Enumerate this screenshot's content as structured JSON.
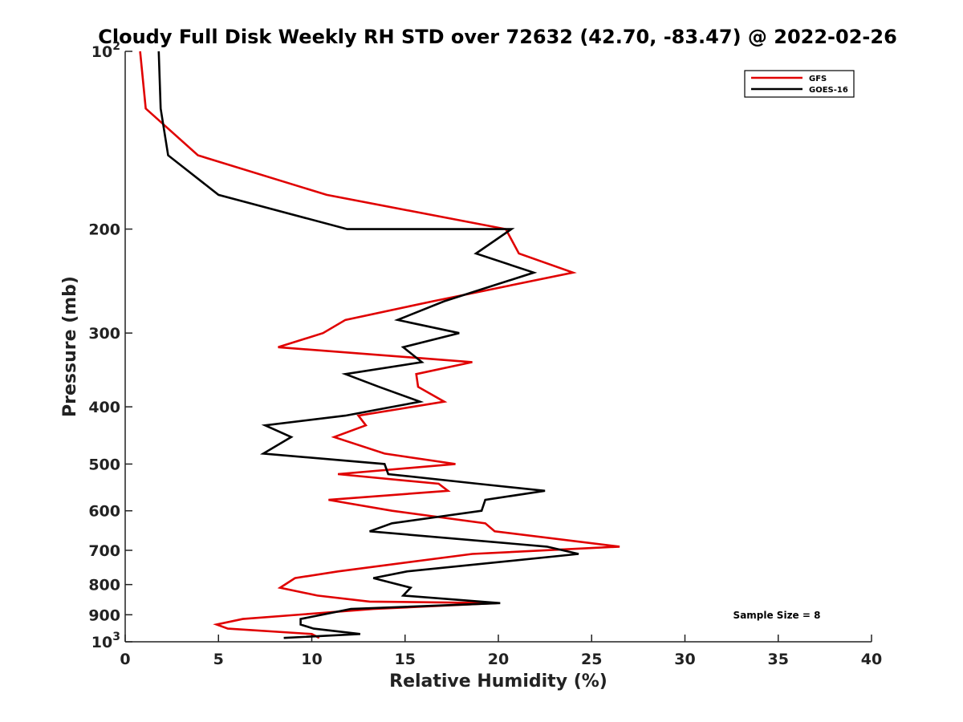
{
  "chart_data": {
    "type": "line",
    "title": "Cloudy Full Disk Weekly RH STD over 72632 (42.70, -83.47) @ 2022-02-26",
    "xlabel": "Relative Humidity (%)",
    "ylabel": "Pressure (mb)",
    "xlim": [
      0,
      40
    ],
    "ylim": [
      100,
      1000
    ],
    "yscale": "log",
    "y_inverted": true,
    "grid": false,
    "legend_position": "top-right",
    "x_ticks": [
      0,
      5,
      10,
      15,
      20,
      25,
      30,
      35,
      40
    ],
    "x_tick_labels": [
      "0",
      "5",
      "10",
      "15",
      "20",
      "25",
      "30",
      "35",
      "40"
    ],
    "y_ticks": [
      100,
      200,
      300,
      400,
      500,
      600,
      700,
      800,
      900,
      1000
    ],
    "y_tick_labels": [
      {
        "base": "10",
        "sup": "2"
      },
      {
        "base": "200",
        "sup": ""
      },
      {
        "base": "300",
        "sup": ""
      },
      {
        "base": "400",
        "sup": ""
      },
      {
        "base": "500",
        "sup": ""
      },
      {
        "base": "600",
        "sup": ""
      },
      {
        "base": "700",
        "sup": ""
      },
      {
        "base": "800",
        "sup": ""
      },
      {
        "base": "900",
        "sup": ""
      },
      {
        "base": "10",
        "sup": "3"
      }
    ],
    "annotation": "Sample Size = 8",
    "series": [
      {
        "name": "GFS",
        "color": "#e00000",
        "points": [
          [
            0.8,
            100
          ],
          [
            1.1,
            125
          ],
          [
            3.9,
            150
          ],
          [
            10.8,
            175
          ],
          [
            20.4,
            200
          ],
          [
            21.1,
            220
          ],
          [
            24.0,
            237
          ],
          [
            16.5,
            265
          ],
          [
            11.8,
            285
          ],
          [
            10.6,
            300
          ],
          [
            8.2,
            317
          ],
          [
            18.6,
            336
          ],
          [
            15.6,
            352
          ],
          [
            15.7,
            370
          ],
          [
            17.1,
            392
          ],
          [
            12.5,
            414
          ],
          [
            12.9,
            430
          ],
          [
            11.2,
            450
          ],
          [
            13.9,
            480
          ],
          [
            17.7,
            500
          ],
          [
            11.4,
            520
          ],
          [
            16.8,
            540
          ],
          [
            17.3,
            555
          ],
          [
            10.9,
            575
          ],
          [
            14.3,
            600
          ],
          [
            19.3,
            630
          ],
          [
            19.8,
            650
          ],
          [
            26.5,
            690
          ],
          [
            18.6,
            710
          ],
          [
            11.4,
            760
          ],
          [
            9.1,
            780
          ],
          [
            8.3,
            810
          ],
          [
            10.3,
            835
          ],
          [
            13.1,
            855
          ],
          [
            19.9,
            860
          ],
          [
            13.3,
            880
          ],
          [
            6.3,
            915
          ],
          [
            4.9,
            935
          ],
          [
            5.5,
            950
          ],
          [
            10.0,
            970
          ],
          [
            10.4,
            985
          ]
        ]
      },
      {
        "name": "GOES-16",
        "color": "#000000",
        "points": [
          [
            1.8,
            100
          ],
          [
            1.9,
            125
          ],
          [
            2.3,
            150
          ],
          [
            5.0,
            175
          ],
          [
            11.9,
            200
          ],
          [
            20.7,
            200
          ],
          [
            18.8,
            220
          ],
          [
            21.9,
            237
          ],
          [
            17.1,
            265
          ],
          [
            14.6,
            285
          ],
          [
            17.9,
            300
          ],
          [
            14.9,
            317
          ],
          [
            15.9,
            336
          ],
          [
            11.8,
            352
          ],
          [
            13.6,
            370
          ],
          [
            15.8,
            392
          ],
          [
            11.8,
            414
          ],
          [
            7.5,
            430
          ],
          [
            8.9,
            450
          ],
          [
            7.4,
            480
          ],
          [
            13.9,
            500
          ],
          [
            14.1,
            520
          ],
          [
            18.9,
            540
          ],
          [
            22.5,
            555
          ],
          [
            19.3,
            575
          ],
          [
            19.1,
            600
          ],
          [
            14.3,
            630
          ],
          [
            13.1,
            650
          ],
          [
            22.6,
            690
          ],
          [
            24.3,
            710
          ],
          [
            15.1,
            760
          ],
          [
            13.3,
            780
          ],
          [
            15.3,
            810
          ],
          [
            14.9,
            835
          ],
          [
            20.1,
            860
          ],
          [
            12.1,
            880
          ],
          [
            9.4,
            915
          ],
          [
            9.4,
            935
          ],
          [
            10.1,
            950
          ],
          [
            12.6,
            970
          ],
          [
            8.5,
            985
          ]
        ]
      }
    ]
  }
}
